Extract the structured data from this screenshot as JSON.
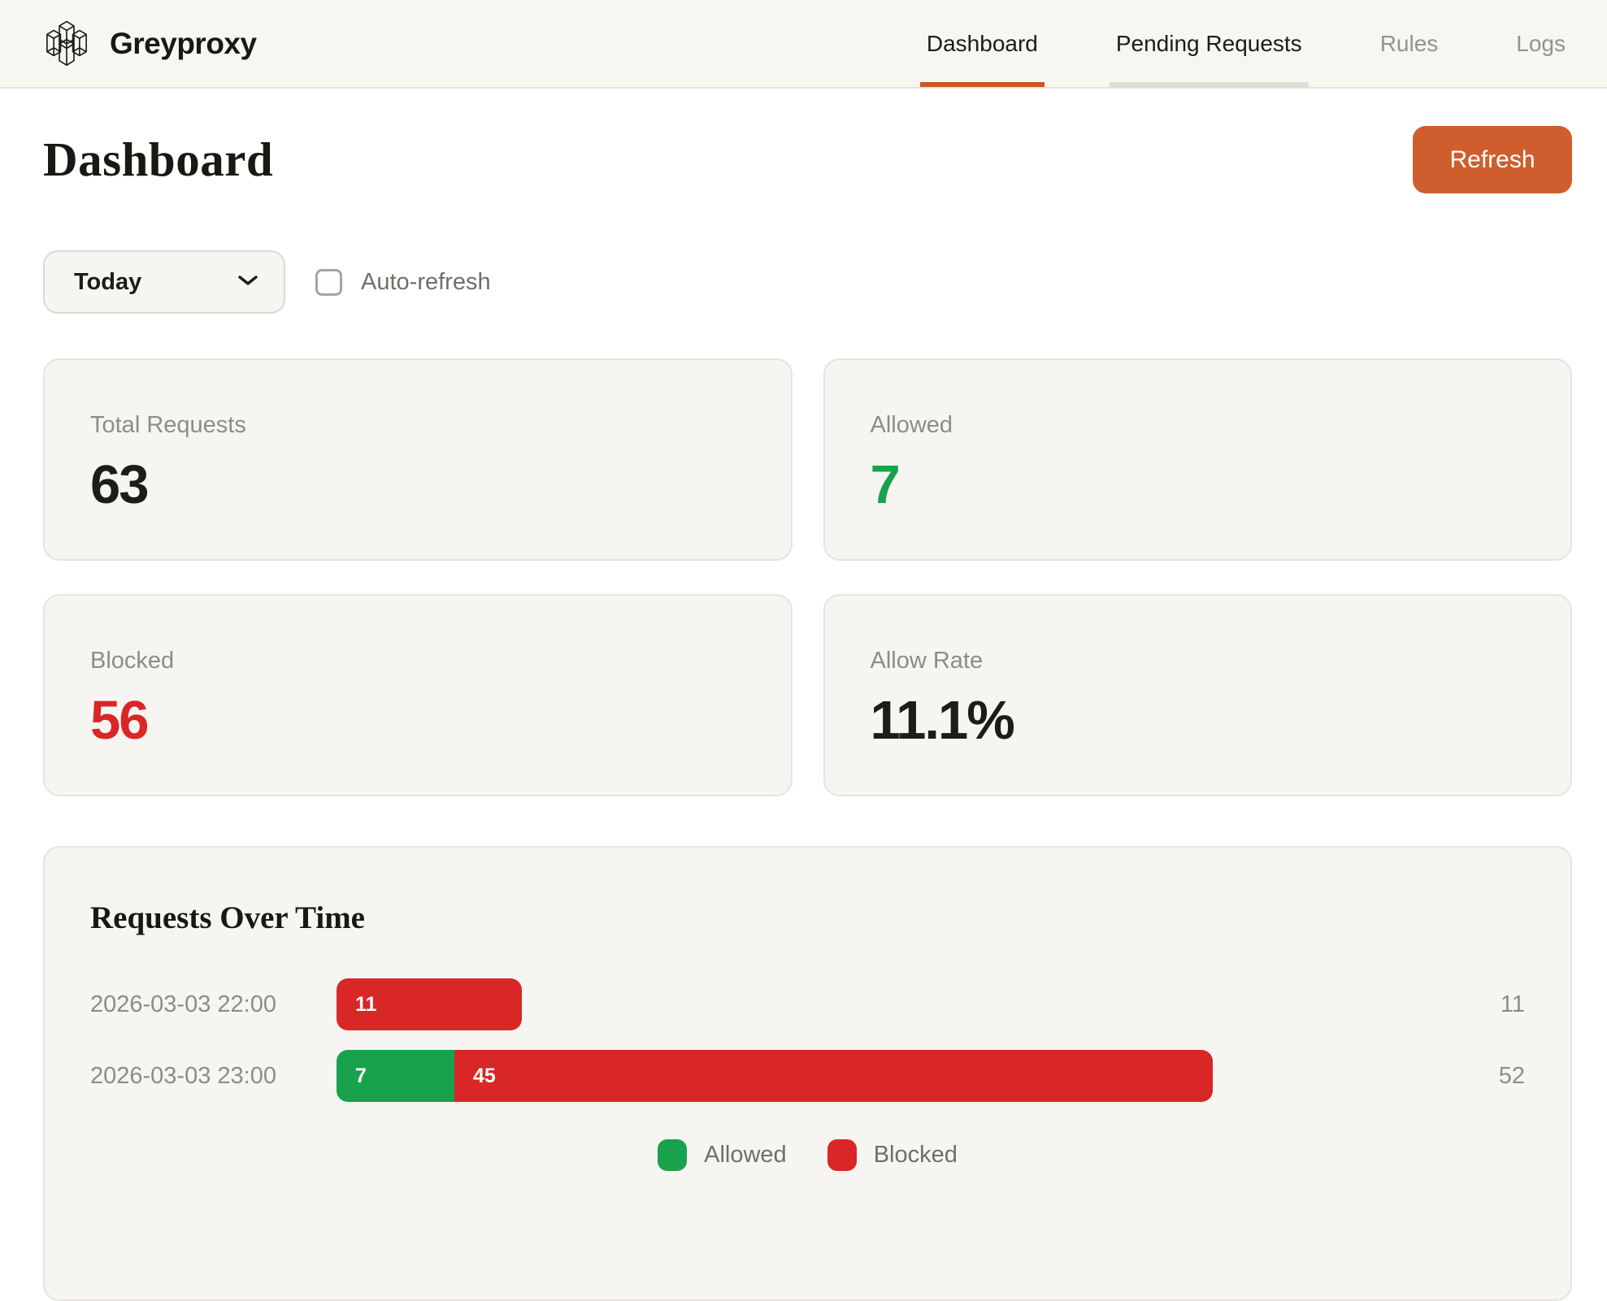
{
  "brand": {
    "name": "Greyproxy",
    "logo_icon": "wireframe-prism-columns-logo"
  },
  "nav": {
    "items": [
      {
        "label": "Dashboard",
        "state": "active"
      },
      {
        "label": "Pending Requests",
        "state": "highlighted"
      },
      {
        "label": "Rules",
        "state": "default"
      },
      {
        "label": "Logs",
        "state": "default"
      }
    ]
  },
  "page": {
    "title": "Dashboard"
  },
  "toolbar": {
    "refresh_label": "Refresh"
  },
  "filters": {
    "time_range": {
      "selected": "Today",
      "icon": "chevron-down"
    },
    "auto_refresh": {
      "label": "Auto-refresh",
      "checked": false
    }
  },
  "stats": [
    {
      "label": "Total Requests",
      "value": "63",
      "color": "#1d1c19"
    },
    {
      "label": "Allowed",
      "value": "7",
      "color": "#18a24c"
    },
    {
      "label": "Blocked",
      "value": "56",
      "color": "#d92626"
    },
    {
      "label": "Allow Rate",
      "value": "11.1%",
      "color": "#1d1c19"
    }
  ],
  "chart_data": {
    "type": "bar",
    "orientation": "horizontal",
    "stacked": true,
    "title": "Requests Over Time",
    "categories": [
      "2026-03-03 22:00",
      "2026-03-03 23:00"
    ],
    "series": [
      {
        "name": "Allowed",
        "color": "#18a24c",
        "values": [
          0,
          7
        ]
      },
      {
        "name": "Blocked",
        "color": "#d92626",
        "values": [
          11,
          45
        ]
      }
    ],
    "row_totals": [
      11,
      52
    ],
    "legend": [
      "Allowed",
      "Blocked"
    ],
    "legend_position": "bottom",
    "value_labels": "inside-start",
    "grid": false
  },
  "colors": {
    "accent_orange": "#cf5d2e",
    "active_tab_underline": "#ce5526",
    "inactive_tab_underline": "#dedcd3",
    "allowed_green": "#18a24c",
    "blocked_red": "#d92626",
    "header_bg": "#f7f6f2",
    "card_bg": "#f6f5f1",
    "card_border": "#e6e4dd",
    "muted_text": "#8d8c85"
  }
}
